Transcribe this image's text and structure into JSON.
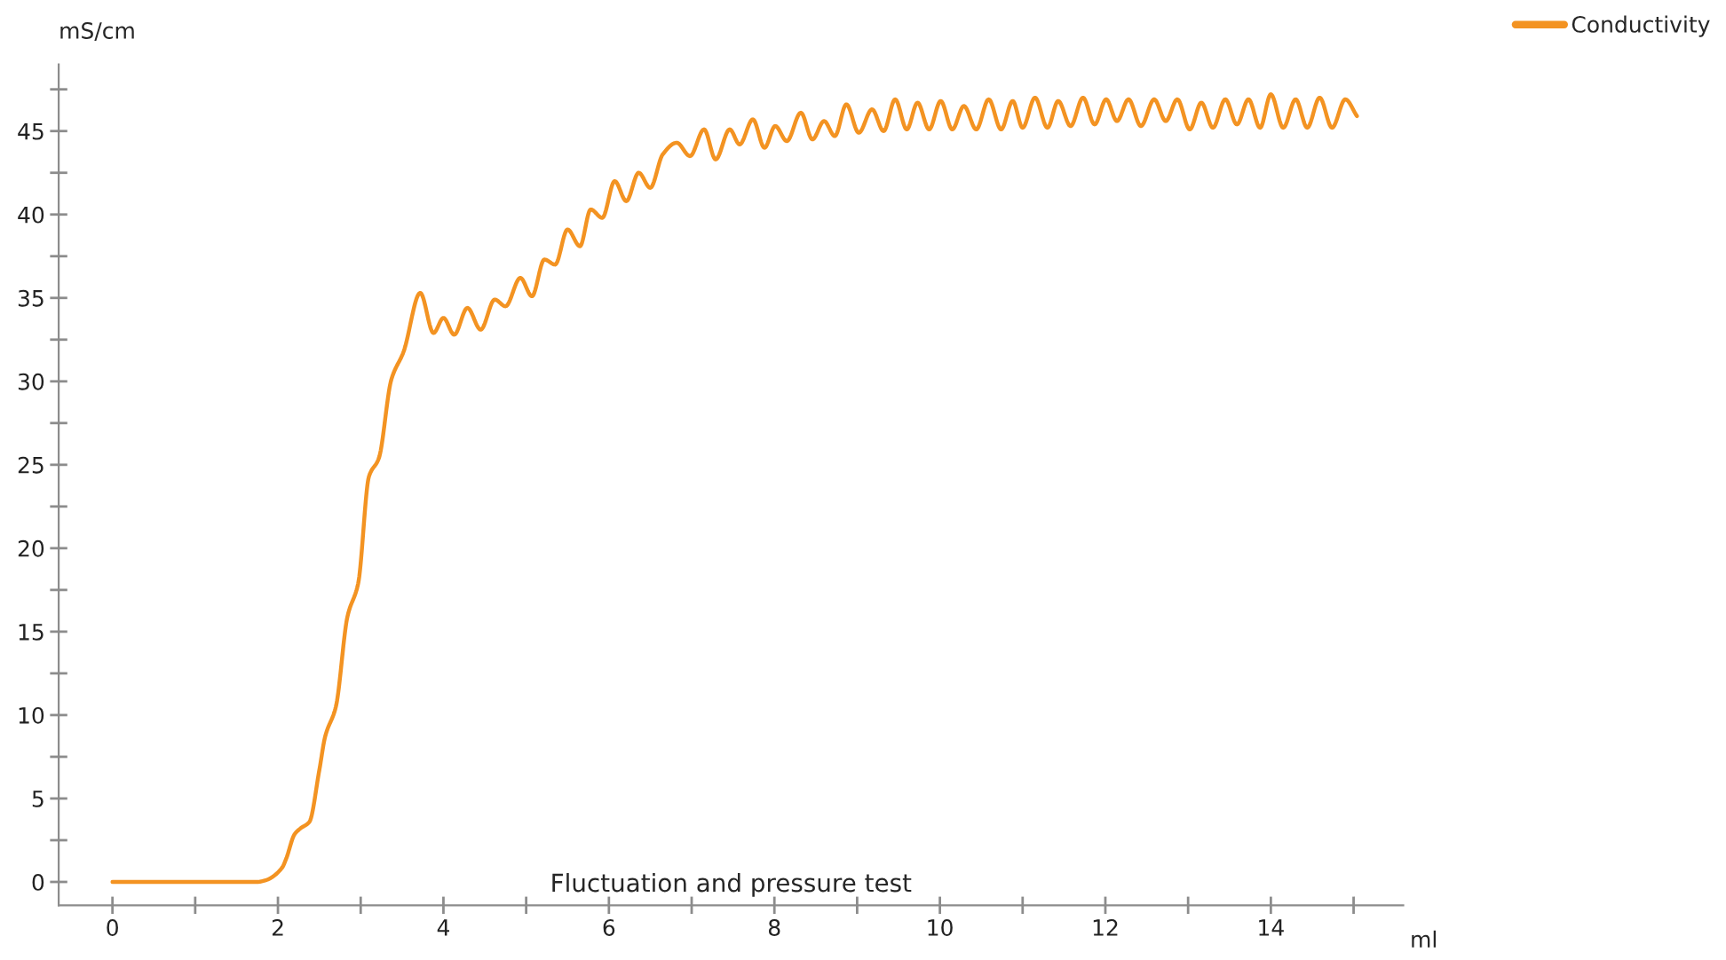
{
  "chart_data": {
    "type": "line",
    "title": "Fluctuation and pressure test",
    "xlabel": "ml",
    "ylabel": "mS/cm",
    "xlim": [
      -0.65,
      15.6
    ],
    "ylim": [
      -1.4,
      49
    ],
    "xticks": [
      0,
      {
        "value": 1,
        "label": null
      },
      2,
      {
        "value": 3,
        "label": null
      },
      4,
      {
        "value": 5,
        "label": null
      },
      6,
      {
        "value": 7,
        "label": null
      },
      8,
      {
        "value": 9,
        "label": null
      },
      10,
      {
        "value": 11,
        "label": null
      },
      12,
      {
        "value": 13,
        "label": null
      },
      14,
      {
        "value": 15,
        "label": null
      }
    ],
    "yticks": [
      0,
      {
        "value": 2.5,
        "label": null
      },
      5,
      {
        "value": 7.5,
        "label": null
      },
      10,
      {
        "value": 12.5,
        "label": null
      },
      15,
      {
        "value": 17.5,
        "label": null
      },
      20,
      {
        "value": 22.5,
        "label": null
      },
      25,
      {
        "value": 27.5,
        "label": null
      },
      30,
      {
        "value": 32.5,
        "label": null
      },
      35,
      {
        "value": 37.5,
        "label": null
      },
      40,
      {
        "value": 42.5,
        "label": null
      },
      45,
      {
        "value": 47.5,
        "label": null
      }
    ],
    "grid": false,
    "legend": "top right",
    "marker": "none",
    "line_style": "solid",
    "series": [
      {
        "name": "Conductivity",
        "color": "#f39322",
        "x": [
          0,
          0.5,
          1.0,
          1.5,
          1.75,
          1.85,
          2.05,
          2.1,
          2.2,
          2.27,
          2.38,
          2.5,
          2.57,
          2.7,
          2.84,
          2.97,
          3.1,
          3.22,
          3.37,
          3.52,
          3.72,
          3.88,
          4.0,
          4.13,
          4.29,
          4.45,
          4.62,
          4.75,
          4.93,
          5.07,
          5.22,
          5.35,
          5.5,
          5.65,
          5.78,
          5.92,
          6.07,
          6.21,
          6.36,
          6.5,
          6.65,
          6.82,
          6.98,
          7.15,
          7.29,
          7.46,
          7.58,
          7.74,
          7.88,
          8.01,
          8.15,
          8.32,
          8.46,
          8.6,
          8.73,
          8.87,
          9.02,
          9.18,
          9.32,
          9.46,
          9.6,
          9.73,
          9.87,
          10.01,
          10.15,
          10.29,
          10.44,
          10.59,
          10.74,
          10.88,
          11.0,
          11.15,
          11.3,
          11.43,
          11.58,
          11.73,
          11.87,
          12.01,
          12.14,
          12.28,
          12.43,
          12.59,
          12.73,
          12.87,
          13.02,
          13.16,
          13.3,
          13.45,
          13.59,
          13.73,
          13.87,
          14.0,
          14.15,
          14.3,
          14.44,
          14.59,
          14.74,
          14.9,
          15.04
        ],
        "values": [
          0,
          0,
          0,
          0,
          0,
          0.1,
          0.85,
          1.4,
          2.85,
          3.2,
          3.6,
          6.7,
          8.7,
          10.5,
          15.9,
          17.9,
          24.3,
          25.4,
          30.1,
          31.8,
          35.3,
          32.9,
          33.8,
          32.8,
          34.4,
          33.1,
          34.9,
          34.5,
          36.2,
          35.1,
          37.3,
          37.0,
          39.1,
          38.1,
          40.3,
          39.8,
          42.0,
          40.8,
          42.5,
          41.6,
          43.6,
          44.3,
          43.5,
          45.1,
          43.3,
          45.1,
          44.2,
          45.7,
          44.0,
          45.3,
          44.4,
          46.1,
          44.5,
          45.6,
          44.7,
          46.6,
          44.9,
          46.3,
          45.0,
          46.9,
          45.1,
          46.7,
          45.1,
          46.8,
          45.1,
          46.5,
          45.1,
          46.9,
          45.1,
          46.8,
          45.2,
          47.0,
          45.2,
          46.8,
          45.3,
          47.0,
          45.4,
          46.9,
          45.6,
          46.9,
          45.3,
          46.9,
          45.6,
          46.9,
          45.1,
          46.7,
          45.2,
          46.9,
          45.4,
          46.9,
          45.2,
          47.2,
          45.2,
          46.9,
          45.2,
          47.0,
          45.2,
          46.9,
          45.9
        ]
      }
    ]
  }
}
